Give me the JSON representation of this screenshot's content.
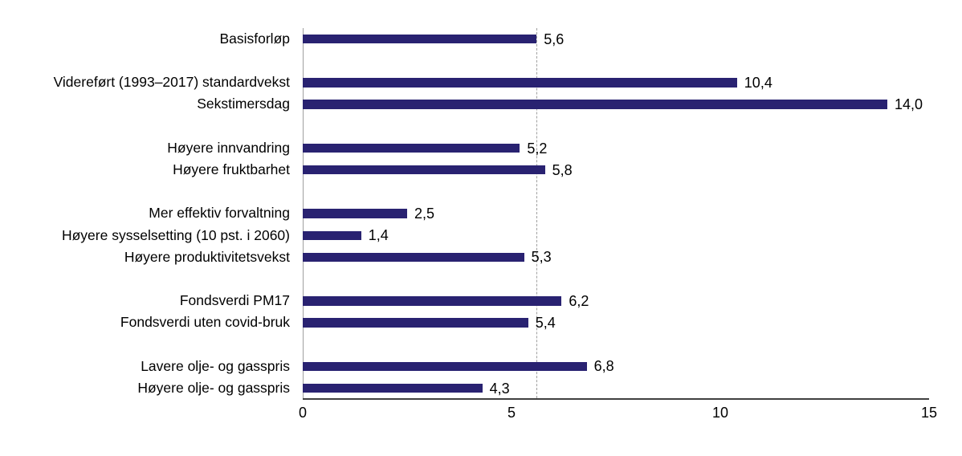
{
  "chart_data": {
    "type": "bar",
    "orientation": "horizontal",
    "title": "",
    "xlabel": "",
    "ylabel": "",
    "xlim": [
      0,
      15
    ],
    "x_tick_values": [
      0,
      5,
      10,
      15
    ],
    "x_tick_labels": [
      "0",
      "5",
      "10",
      "15"
    ],
    "grid": false,
    "legend": "none",
    "decimal_separator": ",",
    "reference_line": {
      "value": 5.6,
      "style": "dashed",
      "color": "#a0a0a0"
    },
    "colors": {
      "bar": "#292271",
      "y_axis_line": "#a0a0a0",
      "x_axis_line": "#404040",
      "text": "#000000",
      "background": "#ffffff"
    },
    "groups": [
      {
        "items": [
          {
            "label": "Basisforløp",
            "value": 5.6,
            "value_label": "5,6"
          }
        ]
      },
      {
        "items": [
          {
            "label": "Videreført (1993–2017) standardvekst",
            "value": 10.4,
            "value_label": "10,4"
          },
          {
            "label": "Sekstimersdag",
            "value": 14.0,
            "value_label": "14,0"
          }
        ]
      },
      {
        "items": [
          {
            "label": "Høyere innvandring",
            "value": 5.2,
            "value_label": "5,2"
          },
          {
            "label": "Høyere fruktbarhet",
            "value": 5.8,
            "value_label": "5,8"
          }
        ]
      },
      {
        "items": [
          {
            "label": "Mer effektiv forvaltning",
            "value": 2.5,
            "value_label": "2,5"
          },
          {
            "label": "Høyere sysselsetting (10 pst. i 2060)",
            "value": 1.4,
            "value_label": "1,4"
          },
          {
            "label": "Høyere produktivitetsvekst",
            "value": 5.3,
            "value_label": "5,3"
          }
        ]
      },
      {
        "items": [
          {
            "label": "Fondsverdi PM17",
            "value": 6.2,
            "value_label": "6,2"
          },
          {
            "label": "Fondsverdi uten covid-bruk",
            "value": 5.4,
            "value_label": "5,4"
          }
        ]
      },
      {
        "items": [
          {
            "label": "Lavere olje- og gasspris",
            "value": 6.8,
            "value_label": "6,8"
          },
          {
            "label": "Høyere olje- og gasspris",
            "value": 4.3,
            "value_label": "4,3"
          }
        ]
      }
    ]
  }
}
